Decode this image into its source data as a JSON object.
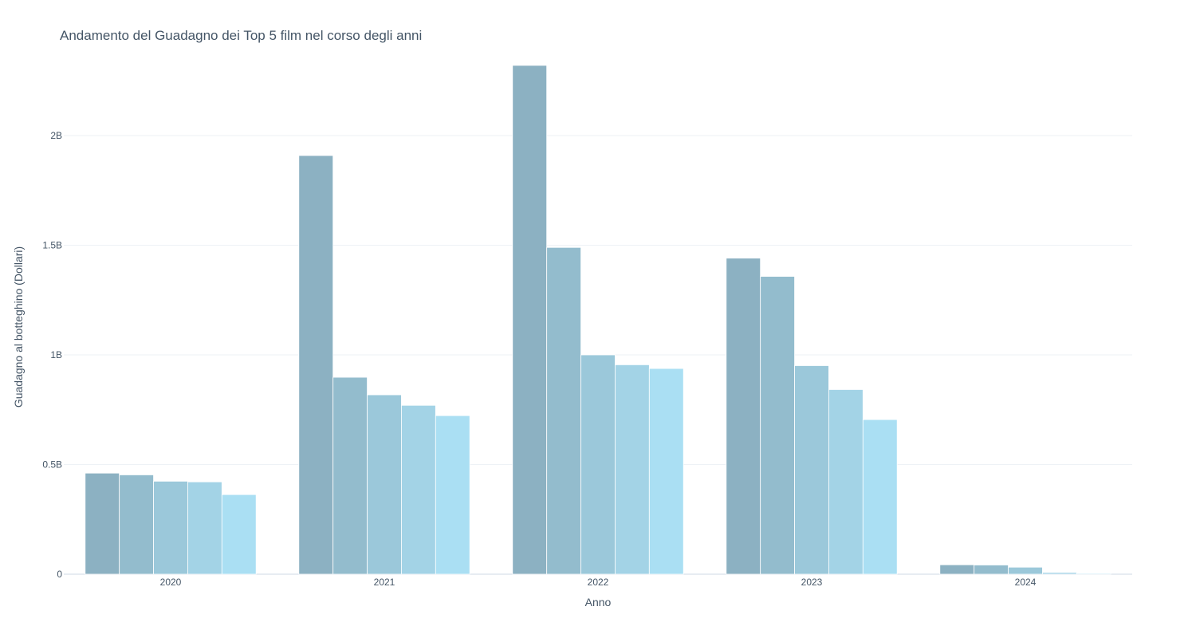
{
  "chart_data": {
    "type": "bar",
    "title": "Andamento del Guadagno dei Top 5 film nel corso degli anni",
    "xlabel": "Anno",
    "ylabel": "Guadagno al botteghino (Dollari)",
    "categories": [
      "2020",
      "2021",
      "2022",
      "2023",
      "2024"
    ],
    "ylim": [
      0,
      2400000000
    ],
    "yticks": [
      {
        "value": 0,
        "label": "0"
      },
      {
        "value": 500000000,
        "label": "0.5B"
      },
      {
        "value": 1000000000,
        "label": "1B"
      },
      {
        "value": 1500000000,
        "label": "1.5B"
      },
      {
        "value": 2000000000,
        "label": "2B"
      }
    ],
    "grid": true,
    "legend": "none",
    "series": [
      {
        "color": "#8cb1c2",
        "values": [
          461000000,
          1909000000,
          2320000000,
          1441000000,
          43000000
        ]
      },
      {
        "color": "#93bccd",
        "values": [
          453000000,
          898000000,
          1490000000,
          1358000000,
          42000000
        ]
      },
      {
        "color": "#9bc8da",
        "values": [
          424000000,
          818000000,
          1000000000,
          951000000,
          32000000
        ]
      },
      {
        "color": "#a3d3e6",
        "values": [
          421000000,
          770000000,
          955000000,
          842000000,
          8000000
        ]
      },
      {
        "color": "#aadff3",
        "values": [
          363000000,
          723000000,
          938000000,
          705000000,
          4000000
        ]
      }
    ]
  }
}
